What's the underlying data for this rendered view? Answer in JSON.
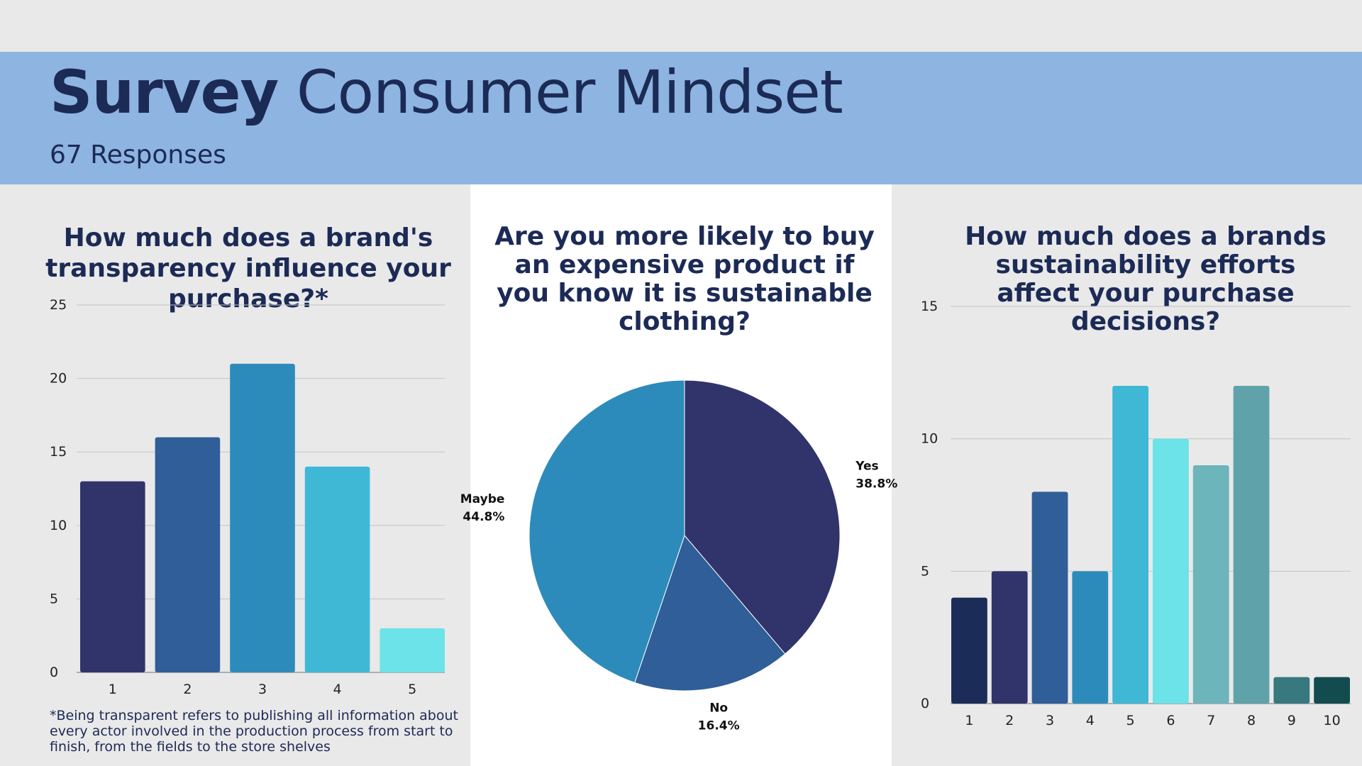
{
  "header": {
    "title_bold": "Survey",
    "title_rest": "Consumer Mindset",
    "subtitle": "67 Responses"
  },
  "footnote": "*Being transparent refers to publishing all information about every actor involved in the production process from start to finish, from the fields to the store shelves",
  "chart_data": [
    {
      "type": "bar",
      "title": "How much does a brand's transparency influence your purchase?*",
      "categories": [
        "1",
        "2",
        "3",
        "4",
        "5"
      ],
      "values": [
        13,
        16,
        21,
        14,
        3
      ],
      "colors": [
        "#31336b",
        "#2f5e98",
        "#2d8bbb",
        "#3fb8d6",
        "#6be3e8"
      ],
      "ylim": [
        0,
        25
      ],
      "yticks": [
        "0",
        "5",
        "10",
        "15",
        "20",
        "25"
      ],
      "grid": true,
      "xlabel": "",
      "ylabel": ""
    },
    {
      "type": "pie",
      "title": "Are you more likely to buy an expensive product if you know it is sustainable clothing?",
      "slices": [
        {
          "label": "Yes",
          "percent_label": "38.8%",
          "value": 38.8,
          "color": "#31336b"
        },
        {
          "label": "No",
          "percent_label": "16.4%",
          "value": 16.4,
          "color": "#2f5e98"
        },
        {
          "label": "Maybe",
          "percent_label": "44.8%",
          "value": 44.8,
          "color": "#2d8bbb"
        }
      ]
    },
    {
      "type": "bar",
      "title": "How much does a brands sustainability efforts affect your purchase decisions?",
      "categories": [
        "1",
        "2",
        "3",
        "4",
        "5",
        "6",
        "7",
        "8",
        "9",
        "10"
      ],
      "values": [
        4,
        5,
        8,
        5,
        12,
        10,
        9,
        12,
        1,
        1
      ],
      "colors": [
        "#1c2c58",
        "#31336b",
        "#2f5e98",
        "#2d8bbb",
        "#3fb8d6",
        "#6be3e8",
        "#6cb5ba",
        "#5fa2aa",
        "#38787f",
        "#134c4f"
      ],
      "ylim": [
        0,
        15
      ],
      "yticks": [
        "0",
        "5",
        "10",
        "15"
      ],
      "grid": true,
      "xlabel": "",
      "ylabel": ""
    }
  ]
}
